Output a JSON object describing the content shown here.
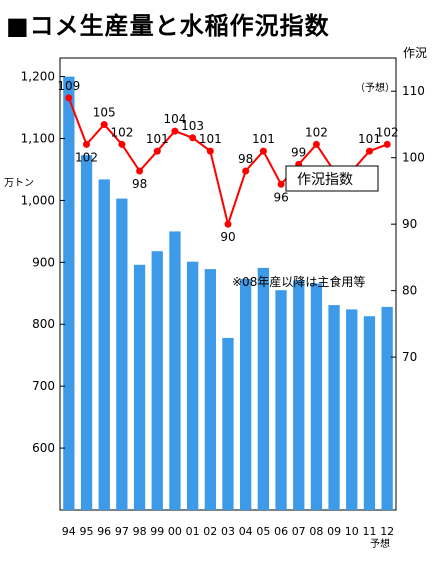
{
  "chart_data": {
    "type": "bar",
    "title": "■コメ生産量と水稲作況指数",
    "categories": [
      "94",
      "95",
      "96",
      "97",
      "98",
      "99",
      "00",
      "01",
      "02",
      "03",
      "04",
      "05",
      "06",
      "07",
      "08",
      "09",
      "10",
      "11",
      "12"
    ],
    "forecast_label": "予想",
    "series": [
      {
        "name": "",
        "type": "bar",
        "axis": "left",
        "values": [
          1200,
          1073,
          1034,
          1003,
          896,
          918,
          950,
          901,
          889,
          778,
          873,
          891,
          855,
          871,
          866,
          831,
          824,
          813,
          828
        ],
        "color": "#3d9ae8"
      },
      {
        "name": "作況指数",
        "type": "line",
        "axis": "right",
        "values": [
          109,
          102,
          105,
          102,
          98,
          101,
          104,
          103,
          101,
          90,
          98,
          101,
          96,
          99,
          102,
          98,
          98,
          101,
          102
        ],
        "color": "#ff0000"
      }
    ],
    "left_axis": {
      "ticks": [
        600,
        700,
        800,
        900,
        1000,
        1100,
        1200
      ],
      "tick_labels": [
        "600",
        "700",
        "800",
        "900",
        "1,000",
        "1,100",
        "1,200"
      ],
      "unit": "万トン",
      "ylim": [
        500,
        1230
      ]
    },
    "right_axis": {
      "ticks": [
        70,
        80,
        90,
        100,
        110
      ],
      "tick_labels": [
        "70",
        "80",
        "90",
        "100",
        "110"
      ],
      "label": "作況",
      "ylim": [
        47,
        115
      ]
    },
    "legend_box": "作況指数",
    "annotation": "※08年産以降は主食用等",
    "forecast_note": "（予想）"
  }
}
